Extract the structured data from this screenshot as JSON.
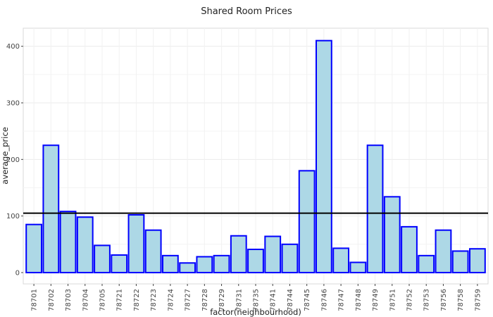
{
  "chart_data": {
    "type": "bar",
    "title": "Shared Room Prices",
    "xlabel": "factor(neighbourhood)",
    "ylabel": "average_price",
    "categories": [
      "78701",
      "78702",
      "78703",
      "78704",
      "78705",
      "78721",
      "78722",
      "78723",
      "78724",
      "78727",
      "78728",
      "78729",
      "78731",
      "78735",
      "78741",
      "78744",
      "78745",
      "78746",
      "78747",
      "78748",
      "78749",
      "78751",
      "78752",
      "78753",
      "78756",
      "78758",
      "78759"
    ],
    "values": [
      85,
      225,
      108,
      98,
      48,
      31,
      102,
      75,
      30,
      17,
      28,
      30,
      65,
      41,
      64,
      50,
      180,
      410,
      43,
      18,
      225,
      134,
      81,
      30,
      75,
      38,
      42
    ],
    "yticks": [
      0,
      100,
      200,
      300,
      400
    ],
    "ylim": [
      -20,
      432
    ],
    "reference_line": 105,
    "grid": true,
    "colors": {
      "bar_fill": "#add8e6",
      "bar_stroke": "#0000ff",
      "reference_line": "#000000",
      "grid": "#ebebeb"
    }
  }
}
